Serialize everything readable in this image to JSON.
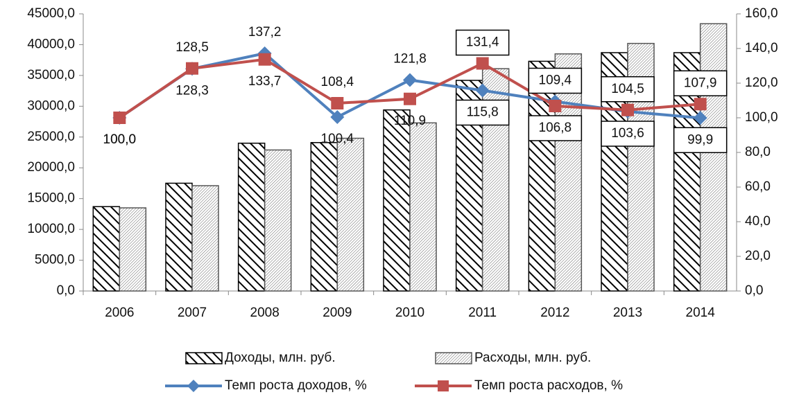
{
  "chart_data": {
    "type": "bar",
    "categories": [
      "2006",
      "2007",
      "2008",
      "2009",
      "2010",
      "2011",
      "2012",
      "2013",
      "2014"
    ],
    "series": [
      {
        "name": "Доходы, млн. руб.",
        "type": "bar",
        "color": "#000000",
        "values": [
          13700,
          17500,
          24000,
          24100,
          29400,
          34200,
          37300,
          38700,
          38700
        ]
      },
      {
        "name": "Расходы, млн. руб.",
        "type": "bar",
        "color": "#555555",
        "values": [
          13500,
          17100,
          22900,
          24800,
          27300,
          36100,
          38500,
          40200,
          43400
        ]
      },
      {
        "name": "Темп роста доходов, %",
        "type": "line",
        "axis": "y2",
        "color": "#4f81bd",
        "values": [
          100.0,
          128.3,
          137.2,
          100.4,
          121.8,
          115.8,
          109.4,
          103.6,
          99.9
        ],
        "value_labels": [
          "100,0",
          "128,3",
          "137,2",
          "100,4",
          "121,8",
          "115,8",
          "109,4",
          "103,6",
          "99,9"
        ]
      },
      {
        "name": "Темп роста расходов, %",
        "type": "line",
        "axis": "y2",
        "color": "#c0504d",
        "values": [
          100.0,
          128.5,
          133.7,
          108.4,
          110.9,
          131.4,
          106.8,
          104.5,
          107.9
        ],
        "value_labels": [
          "100,0",
          "128,5",
          "133,7",
          "108,4",
          "110,9",
          "131,4",
          "106,8",
          "104,5",
          "107,9"
        ]
      }
    ],
    "ylim": [
      0,
      45000
    ],
    "yticks": [
      {
        "value": 0,
        "label": "0,0"
      },
      {
        "value": 5000,
        "label": "5000,0"
      },
      {
        "value": 10000,
        "label": "10000,0"
      },
      {
        "value": 15000,
        "label": "15000,0"
      },
      {
        "value": 20000,
        "label": "20000,0"
      },
      {
        "value": 25000,
        "label": "25000,0"
      },
      {
        "value": 30000,
        "label": "30000,0"
      },
      {
        "value": 35000,
        "label": "35000,0"
      },
      {
        "value": 40000,
        "label": "40000,0"
      },
      {
        "value": 45000,
        "label": "45000,0"
      }
    ],
    "y2lim": [
      0,
      160
    ],
    "y2ticks": [
      {
        "value": 0,
        "label": "0,0"
      },
      {
        "value": 20,
        "label": "20,0"
      },
      {
        "value": 40,
        "label": "40,0"
      },
      {
        "value": 60,
        "label": "60,0"
      },
      {
        "value": 80,
        "label": "80,0"
      },
      {
        "value": 100,
        "label": "100,0"
      },
      {
        "value": 120,
        "label": "120,0"
      },
      {
        "value": 140,
        "label": "140,0"
      },
      {
        "value": 160,
        "label": "160,0"
      }
    ],
    "grid": false,
    "legend": "bottom"
  }
}
